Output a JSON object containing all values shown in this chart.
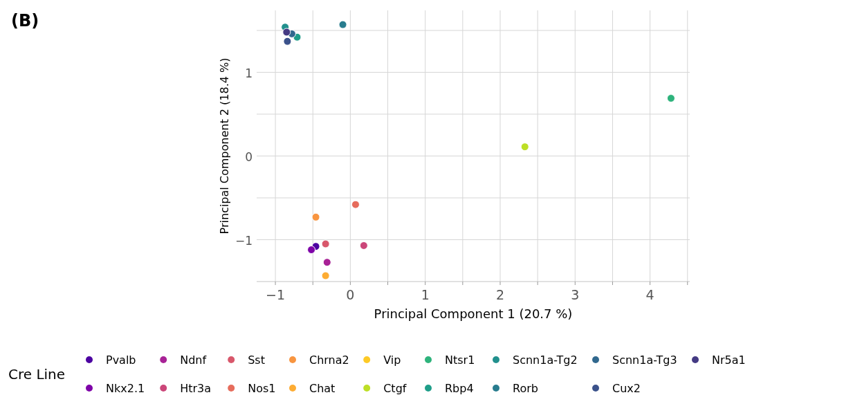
{
  "chart_data": {
    "type": "scatter",
    "title": "(B)",
    "xlabel": "Principal Component 1 (20.7 %)",
    "ylabel": "Principal Component 2 (18.4 %)",
    "legend_title": "Cre Line",
    "legend": "bottom",
    "grid": true,
    "marker": "circle",
    "xlim": [
      -1.25,
      4.53
    ],
    "ylim": [
      -1.5,
      1.74
    ],
    "xticks": [
      -1,
      {
        "value": -0.5,
        "label": null
      },
      0,
      {
        "value": 0.5,
        "label": null
      },
      1,
      {
        "value": 1.5,
        "label": null
      },
      2,
      {
        "value": 2.5,
        "label": null
      },
      3,
      {
        "value": 3.5,
        "label": null
      },
      4,
      {
        "value": 4.5,
        "label": null
      }
    ],
    "yticks": [
      {
        "value": -1.5,
        "label": null
      },
      -1,
      {
        "value": -0.5,
        "label": null
      },
      0,
      {
        "value": 0.5,
        "label": null
      },
      1,
      {
        "value": 1.5,
        "label": null
      }
    ],
    "series": [
      {
        "name": "Pvalb",
        "color": "#4c02a1",
        "x": [
          -0.46
        ],
        "values": [
          -1.08
        ]
      },
      {
        "name": "Nkx2.1",
        "color": "#7e03a8",
        "x": [
          -0.52
        ],
        "values": [
          -1.12
        ]
      },
      {
        "name": "Ndnf",
        "color": "#a82296",
        "x": [
          -0.31
        ],
        "values": [
          -1.27
        ]
      },
      {
        "name": "Htr3a",
        "color": "#cb4679",
        "x": [
          0.18
        ],
        "values": [
          -1.07
        ]
      },
      {
        "name": "Sst",
        "color": "#d8576b",
        "x": [
          -0.33
        ],
        "values": [
          -1.05
        ]
      },
      {
        "name": "Nos1",
        "color": "#e66c5c",
        "x": [
          0.07
        ],
        "values": [
          -0.58
        ]
      },
      {
        "name": "Chrna2",
        "color": "#f89540",
        "x": [
          -0.46
        ],
        "values": [
          -0.73
        ]
      },
      {
        "name": "Chat",
        "color": "#fdac33",
        "x": [
          -0.33
        ],
        "values": [
          -1.43
        ]
      },
      {
        "name": "Vip",
        "color": "#fdca26",
        "x": [
          null
        ],
        "values": [
          null
        ]
      },
      {
        "name": "Ctgf",
        "color": "#bddf26",
        "x": [
          2.33
        ],
        "values": [
          0.11
        ]
      },
      {
        "name": "Ntsr1",
        "color": "#2eb37c",
        "x": [
          4.28
        ],
        "values": [
          0.69
        ]
      },
      {
        "name": "Rbp4",
        "color": "#1f9e89",
        "x": [
          -0.71
        ],
        "values": [
          1.42
        ]
      },
      {
        "name": "Scnn1a-Tg2",
        "color": "#21908d",
        "x": [
          -0.87
        ],
        "values": [
          1.54
        ]
      },
      {
        "name": "Rorb",
        "color": "#287c8e",
        "x": [
          -0.1
        ],
        "values": [
          1.57
        ]
      },
      {
        "name": "Scnn1a-Tg3",
        "color": "#31688e",
        "x": [
          -0.78
        ],
        "values": [
          1.46
        ]
      },
      {
        "name": "Cux2",
        "color": "#3b528b",
        "x": [
          -0.84
        ],
        "values": [
          1.37
        ]
      },
      {
        "name": "Nr5a1",
        "color": "#443a83",
        "x": [
          -0.85
        ],
        "values": [
          1.48
        ]
      }
    ]
  }
}
